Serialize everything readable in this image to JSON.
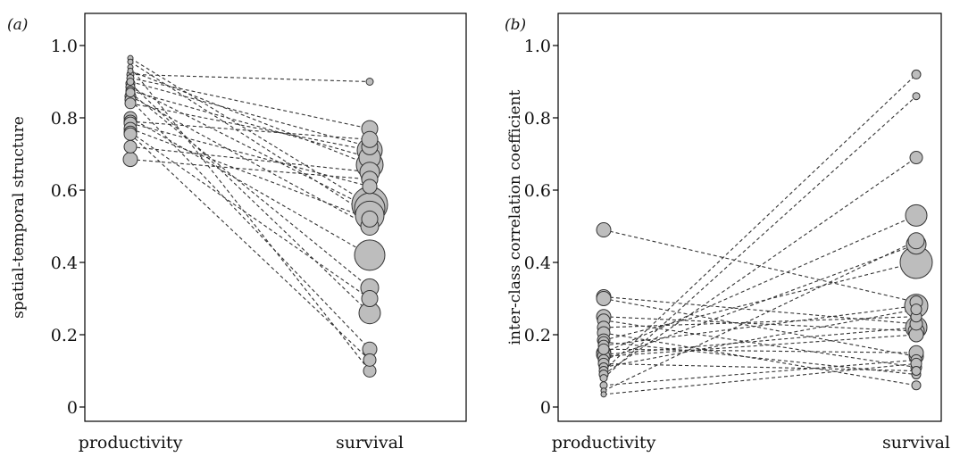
{
  "chart_data": [
    {
      "type": "scatter",
      "panel": "(a)",
      "categories": [
        "productivity",
        "survival"
      ],
      "ylabel": "spatial-temporal structure",
      "ylim": [
        0,
        1.0
      ],
      "yticks": [
        "0",
        "0.2",
        "0.4",
        "0.6",
        "0.8",
        "1.0"
      ],
      "grid": false,
      "pairs": [
        {
          "p": 0.965,
          "s": 0.56,
          "ps": 3,
          "ss": 20
        },
        {
          "p": 0.955,
          "s": 0.53,
          "ps": 3,
          "ss": 16
        },
        {
          "p": 0.94,
          "s": 0.1,
          "ps": 3,
          "ss": 7
        },
        {
          "p": 0.93,
          "s": 0.67,
          "ps": 3,
          "ss": 15
        },
        {
          "p": 0.92,
          "s": 0.9,
          "ps": 4,
          "ss": 4
        },
        {
          "p": 0.91,
          "s": 0.77,
          "ps": 4,
          "ss": 9
        },
        {
          "p": 0.9,
          "s": 0.72,
          "ps": 4,
          "ss": 9
        },
        {
          "p": 0.895,
          "s": 0.26,
          "ps": 5,
          "ss": 12
        },
        {
          "p": 0.885,
          "s": 0.55,
          "ps": 5,
          "ss": 17
        },
        {
          "p": 0.875,
          "s": 0.69,
          "ps": 5,
          "ss": 12
        },
        {
          "p": 0.87,
          "s": 0.33,
          "ps": 5,
          "ss": 10
        },
        {
          "p": 0.86,
          "s": 0.5,
          "ps": 6,
          "ss": 10
        },
        {
          "p": 0.85,
          "s": 0.16,
          "ps": 6,
          "ss": 8
        },
        {
          "p": 0.84,
          "s": 0.71,
          "ps": 6,
          "ss": 14
        },
        {
          "p": 0.8,
          "s": 0.42,
          "ps": 7,
          "ss": 17
        },
        {
          "p": 0.79,
          "s": 0.74,
          "ps": 7,
          "ss": 9
        },
        {
          "p": 0.785,
          "s": 0.61,
          "ps": 7,
          "ss": 8
        },
        {
          "p": 0.77,
          "s": 0.52,
          "ps": 7,
          "ss": 9
        },
        {
          "p": 0.76,
          "s": 0.3,
          "ps": 7,
          "ss": 9
        },
        {
          "p": 0.755,
          "s": 0.13,
          "ps": 7,
          "ss": 7
        },
        {
          "p": 0.72,
          "s": 0.65,
          "ps": 7,
          "ss": 11
        },
        {
          "p": 0.685,
          "s": 0.63,
          "ps": 8,
          "ss": 9
        }
      ]
    },
    {
      "type": "scatter",
      "panel": "(b)",
      "categories": [
        "productivity",
        "survival"
      ],
      "ylabel": "inter-class correlation coefficient",
      "ylim": [
        0,
        1.0
      ],
      "yticks": [
        "0",
        "0.2",
        "0.4",
        "0.6",
        "0.8",
        "1.0"
      ],
      "grid": false,
      "pairs": [
        {
          "p": 0.49,
          "s": 0.29,
          "ps": 8,
          "ss": 7
        },
        {
          "p": 0.305,
          "s": 0.23,
          "ps": 8,
          "ss": 7
        },
        {
          "p": 0.3,
          "s": 0.14,
          "ps": 8,
          "ss": 8
        },
        {
          "p": 0.25,
          "s": 0.21,
          "ps": 8,
          "ss": 9
        },
        {
          "p": 0.24,
          "s": 0.11,
          "ps": 7,
          "ss": 6
        },
        {
          "p": 0.22,
          "s": 0.25,
          "ps": 7,
          "ss": 6
        },
        {
          "p": 0.205,
          "s": 0.06,
          "ps": 7,
          "ss": 5
        },
        {
          "p": 0.185,
          "s": 0.4,
          "ps": 7,
          "ss": 18
        },
        {
          "p": 0.18,
          "s": 0.09,
          "ps": 6,
          "ss": 5
        },
        {
          "p": 0.17,
          "s": 0.28,
          "ps": 6,
          "ss": 13
        },
        {
          "p": 0.16,
          "s": 0.15,
          "ps": 6,
          "ss": 8
        },
        {
          "p": 0.15,
          "s": 0.53,
          "ps": 8,
          "ss": 12
        },
        {
          "p": 0.145,
          "s": 0.22,
          "ps": 8,
          "ss": 12
        },
        {
          "p": 0.14,
          "s": 0.2,
          "ps": 7,
          "ss": 8
        },
        {
          "p": 0.13,
          "s": 0.45,
          "ps": 6,
          "ss": 11
        },
        {
          "p": 0.12,
          "s": 0.1,
          "ps": 6,
          "ss": 5
        },
        {
          "p": 0.11,
          "s": 0.27,
          "ps": 5,
          "ss": 6
        },
        {
          "p": 0.1,
          "s": 0.92,
          "ps": 5,
          "ss": 5
        },
        {
          "p": 0.09,
          "s": 0.69,
          "ps": 5,
          "ss": 7
        },
        {
          "p": 0.08,
          "s": 0.86,
          "ps": 4,
          "ss": 4
        },
        {
          "p": 0.06,
          "s": 0.13,
          "ps": 4,
          "ss": 6
        },
        {
          "p": 0.045,
          "s": 0.46,
          "ps": 3,
          "ss": 9
        },
        {
          "p": 0.035,
          "s": 0.12,
          "ps": 3,
          "ss": 6
        }
      ]
    }
  ],
  "style": {
    "marker_fill": "#bdbdbd",
    "marker_stroke": "#333333",
    "line_color": "#333333"
  }
}
